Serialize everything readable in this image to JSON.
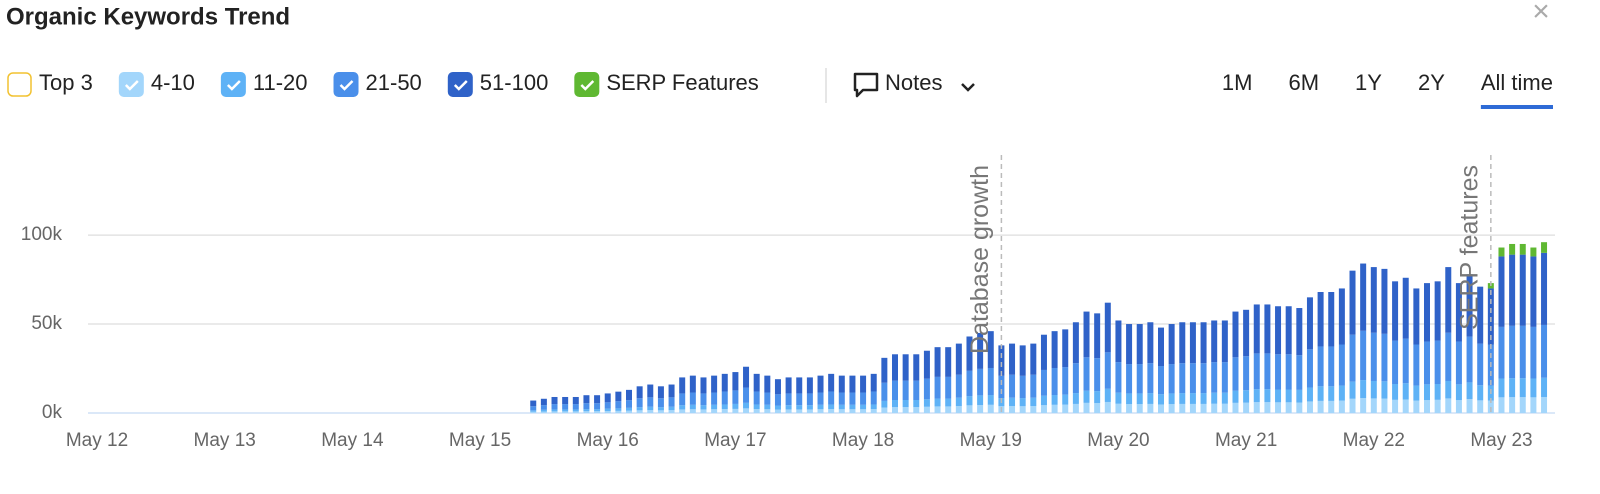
{
  "header": {
    "title": "Organic Keywords Trend",
    "close": "×"
  },
  "controls": {
    "notes": "Notes",
    "ranges": [
      "1M",
      "6M",
      "1Y",
      "2Y",
      "All time"
    ],
    "active_range": 4
  },
  "chart_data": {
    "type": "bar",
    "stacked": true,
    "categories": [
      "May 12",
      null,
      null,
      null,
      null,
      null,
      null,
      null,
      null,
      null,
      null,
      null,
      "May 13",
      null,
      null,
      null,
      null,
      null,
      null,
      null,
      null,
      null,
      null,
      null,
      "May 14",
      null,
      null,
      null,
      null,
      null,
      null,
      null,
      null,
      null,
      null,
      null,
      "May 15",
      null,
      null,
      null,
      null,
      null,
      null,
      null,
      null,
      null,
      null,
      null,
      "May 16",
      null,
      null,
      null,
      null,
      null,
      null,
      null,
      null,
      null,
      null,
      null,
      "May 17",
      null,
      null,
      null,
      null,
      null,
      null,
      null,
      null,
      null,
      null,
      null,
      "May 18",
      null,
      null,
      null,
      null,
      null,
      null,
      null,
      null,
      null,
      null,
      null,
      "May 19",
      null,
      null,
      null,
      null,
      null,
      null,
      null,
      null,
      null,
      null,
      null,
      "May 20",
      null,
      null,
      null,
      null,
      null,
      null,
      null,
      null,
      null,
      null,
      null,
      "May 21",
      null,
      null,
      null,
      null,
      null,
      null,
      null,
      null,
      null,
      null,
      null,
      "May 22",
      null,
      null,
      null,
      null,
      null,
      null,
      null,
      null,
      null,
      null,
      null,
      "May 23",
      null,
      null,
      null,
      null
    ],
    "series": [
      {
        "name": "Top 3",
        "color": "#f2c230",
        "visible": false
      },
      {
        "name": "4-10",
        "color": "#a3d6fb",
        "visible": true,
        "values": [
          null,
          null,
          null,
          null,
          null,
          null,
          null,
          null,
          null,
          null,
          null,
          null,
          null,
          null,
          null,
          null,
          null,
          null,
          null,
          null,
          null,
          null,
          null,
          null,
          null,
          null,
          null,
          null,
          null,
          null,
          null,
          null,
          null,
          null,
          null,
          null,
          null,
          null,
          null,
          null,
          null,
          700,
          800,
          900,
          900,
          900,
          1000,
          1000,
          1100,
          1200,
          1300,
          1500,
          1600,
          1500,
          1600,
          2000,
          2100,
          2000,
          2100,
          2200,
          2300,
          2600,
          2200,
          2100,
          1900,
          2000,
          2000,
          2000,
          2100,
          2200,
          2100,
          2100,
          2100,
          2200,
          3100,
          3300,
          3300,
          3300,
          3500,
          3700,
          3700,
          3900,
          4300,
          4500,
          4600,
          3800,
          3900,
          3800,
          3900,
          4400,
          4600,
          4700,
          5100,
          5700,
          5600,
          6200,
          5200,
          5000,
          5000,
          5100,
          4800,
          5000,
          5100,
          5100,
          5100,
          5200,
          5200,
          5700,
          5800,
          6100,
          6100,
          6000,
          6000,
          5900,
          6500,
          6800,
          6800,
          7000,
          8000,
          8400,
          8200,
          8100,
          7400,
          7600,
          7000,
          7300,
          7400,
          8200,
          7300,
          7800,
          7100,
          7000,
          8800,
          8900,
          8900,
          8800,
          9000
        ]
      },
      {
        "name": "11-20",
        "color": "#5eb2f6",
        "visible": true,
        "values": [
          null,
          null,
          null,
          null,
          null,
          null,
          null,
          null,
          null,
          null,
          null,
          null,
          null,
          null,
          null,
          null,
          null,
          null,
          null,
          null,
          null,
          null,
          null,
          null,
          null,
          null,
          null,
          null,
          null,
          null,
          null,
          null,
          null,
          null,
          null,
          null,
          null,
          null,
          null,
          null,
          null,
          800,
          1000,
          1100,
          1100,
          1100,
          1200,
          1200,
          1300,
          1400,
          1600,
          1800,
          1900,
          1800,
          1900,
          2400,
          2500,
          2400,
          2500,
          2600,
          2800,
          3100,
          2600,
          2500,
          2300,
          2400,
          2400,
          2400,
          2500,
          2600,
          2500,
          2500,
          2500,
          2600,
          3700,
          4000,
          4000,
          4000,
          4200,
          4400,
          4400,
          4700,
          5200,
          5400,
          5500,
          4600,
          4700,
          4600,
          4700,
          5300,
          5500,
          5600,
          6100,
          6800,
          6700,
          7400,
          6200,
          6000,
          6000,
          6100,
          5800,
          6000,
          6100,
          6100,
          6100,
          6200,
          6200,
          6800,
          7000,
          7300,
          7300,
          7200,
          7200,
          7100,
          7800,
          8200,
          8200,
          8400,
          9600,
          10100,
          9800,
          9700,
          8900,
          9100,
          8400,
          8800,
          8900,
          9800,
          8800,
          9400,
          8500,
          8400,
          10600,
          10700,
          10700,
          10600,
          10800
        ]
      },
      {
        "name": "21-50",
        "color": "#4a8fea",
        "visible": true,
        "values": [
          null,
          null,
          null,
          null,
          null,
          null,
          null,
          null,
          null,
          null,
          null,
          null,
          null,
          null,
          null,
          null,
          null,
          null,
          null,
          null,
          null,
          null,
          null,
          null,
          null,
          null,
          null,
          null,
          null,
          null,
          null,
          null,
          null,
          null,
          null,
          null,
          null,
          null,
          null,
          null,
          null,
          2300,
          2600,
          3000,
          3000,
          3000,
          3300,
          3300,
          3600,
          4000,
          4300,
          5000,
          5300,
          5000,
          5300,
          6600,
          6900,
          6600,
          6900,
          7300,
          7600,
          8600,
          7300,
          6900,
          6300,
          6600,
          6600,
          6600,
          6900,
          7300,
          6900,
          6900,
          6900,
          7300,
          10200,
          10900,
          10900,
          10900,
          11600,
          12200,
          12200,
          12900,
          14200,
          14900,
          15200,
          12500,
          12900,
          12500,
          12900,
          14500,
          15200,
          15500,
          16800,
          18800,
          18500,
          20500,
          17200,
          16500,
          16500,
          16800,
          15800,
          16500,
          16800,
          16800,
          16800,
          17200,
          17200,
          18800,
          19100,
          20100,
          20100,
          19800,
          19800,
          19500,
          21500,
          22400,
          22400,
          23100,
          26400,
          27700,
          27100,
          26700,
          24400,
          25100,
          23100,
          24100,
          24400,
          27100,
          24100,
          25700,
          23400,
          23100,
          29000,
          29400,
          29400,
          29000,
          29700
        ]
      },
      {
        "name": "51-100",
        "color": "#2f62c8",
        "visible": true,
        "values": [
          null,
          null,
          null,
          null,
          null,
          null,
          null,
          null,
          null,
          null,
          null,
          null,
          null,
          null,
          null,
          null,
          null,
          null,
          null,
          null,
          null,
          null,
          null,
          null,
          null,
          null,
          null,
          null,
          null,
          null,
          null,
          null,
          null,
          null,
          null,
          null,
          null,
          null,
          null,
          null,
          null,
          3200,
          3600,
          4000,
          4000,
          4000,
          4500,
          4500,
          5000,
          5400,
          5800,
          6700,
          7200,
          6700,
          7200,
          9000,
          9500,
          9000,
          9500,
          9900,
          10300,
          11700,
          9900,
          9500,
          8500,
          9000,
          9000,
          9000,
          9500,
          9900,
          9500,
          9500,
          9500,
          9900,
          14000,
          14800,
          14800,
          14800,
          15700,
          16700,
          16700,
          17500,
          19300,
          20200,
          20700,
          17100,
          17500,
          17100,
          17500,
          19800,
          20700,
          21200,
          23000,
          25700,
          25200,
          27900,
          23400,
          22500,
          22500,
          23000,
          21600,
          22500,
          23000,
          23000,
          23000,
          23400,
          23400,
          25700,
          26100,
          27500,
          27500,
          27000,
          27000,
          26500,
          29200,
          30600,
          30600,
          31500,
          36000,
          37800,
          36900,
          36500,
          33300,
          34200,
          31500,
          32800,
          33300,
          36900,
          32800,
          35100,
          32000,
          31500,
          39600,
          40000,
          40000,
          39600,
          40500
        ]
      },
      {
        "name": "SERP Features",
        "color": "#5fb832",
        "visible": true,
        "values": [
          null,
          null,
          null,
          null,
          null,
          null,
          null,
          null,
          null,
          null,
          null,
          null,
          null,
          null,
          null,
          null,
          null,
          null,
          null,
          null,
          null,
          null,
          null,
          null,
          null,
          null,
          null,
          null,
          null,
          null,
          null,
          null,
          null,
          null,
          null,
          null,
          null,
          null,
          null,
          null,
          null,
          null,
          null,
          null,
          null,
          null,
          null,
          null,
          null,
          null,
          null,
          null,
          null,
          null,
          null,
          null,
          null,
          null,
          null,
          null,
          null,
          null,
          null,
          null,
          null,
          null,
          null,
          null,
          null,
          null,
          null,
          null,
          null,
          null,
          null,
          null,
          null,
          null,
          null,
          null,
          null,
          null,
          null,
          null,
          null,
          null,
          null,
          null,
          null,
          null,
          null,
          null,
          null,
          null,
          null,
          null,
          null,
          null,
          null,
          null,
          null,
          null,
          null,
          null,
          null,
          null,
          null,
          null,
          null,
          null,
          null,
          null,
          null,
          null,
          null,
          null,
          null,
          null,
          null,
          null,
          null,
          null,
          null,
          null,
          null,
          null,
          null,
          null,
          null,
          null,
          null,
          3000,
          5000,
          6000,
          6000,
          5000,
          6000
        ]
      }
    ],
    "ylim": [
      0,
      145000
    ],
    "yticks": [
      {
        "value": 0,
        "label": "0k"
      },
      {
        "value": 50000,
        "label": "50k"
      },
      {
        "value": 100000,
        "label": "100k"
      }
    ],
    "grid": true,
    "annotations": [
      {
        "text": "Database growth",
        "category_index": 85
      },
      {
        "text": "SERP features",
        "category_index": 131
      }
    ]
  }
}
